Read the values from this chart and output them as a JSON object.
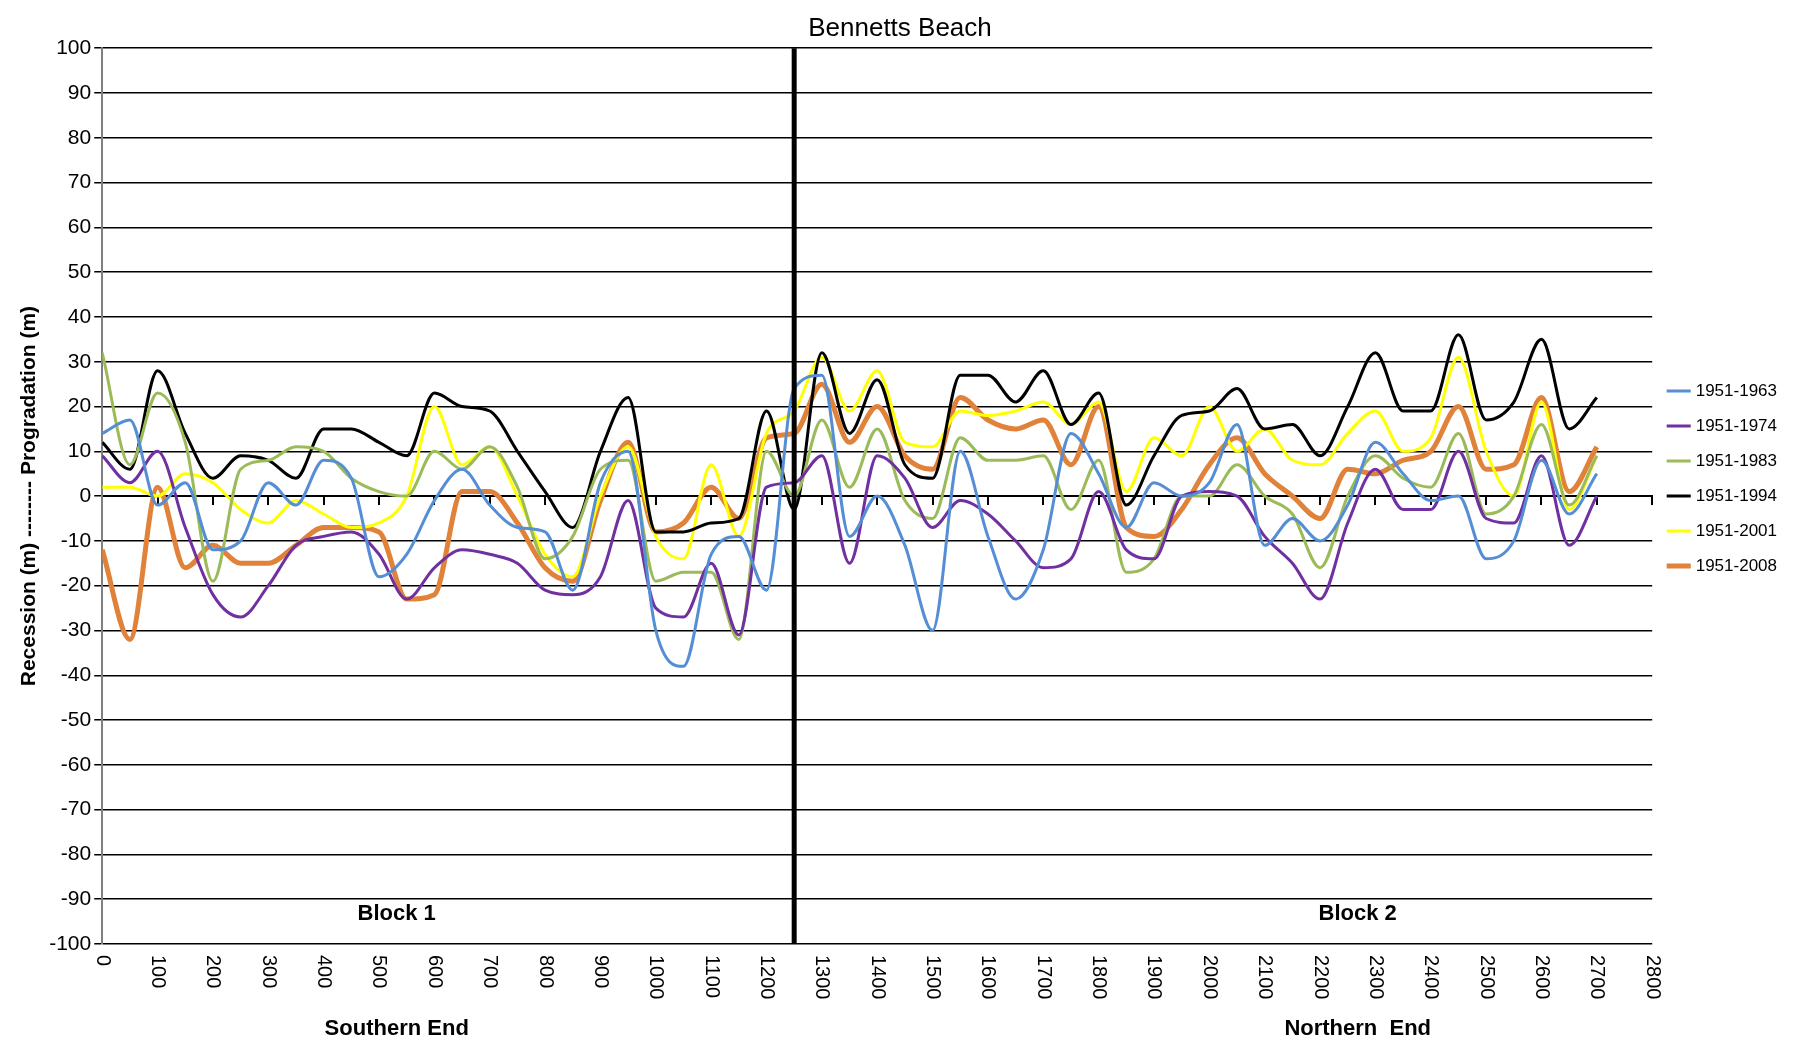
{
  "chart_data": {
    "type": "line",
    "title": "Bennetts Beach",
    "ylabel": "Recession (m) -------- Progradation (m)",
    "x": [
      0,
      50,
      100,
      150,
      200,
      250,
      300,
      350,
      400,
      450,
      500,
      550,
      600,
      650,
      700,
      750,
      800,
      850,
      900,
      950,
      1000,
      1050,
      1100,
      1150,
      1200,
      1250,
      1300,
      1350,
      1400,
      1450,
      1500,
      1550,
      1600,
      1650,
      1700,
      1750,
      1800,
      1850,
      1900,
      1950,
      2000,
      2050,
      2100,
      2150,
      2200,
      2250,
      2300,
      2350,
      2400,
      2450,
      2500,
      2550,
      2600,
      2650,
      2700
    ],
    "series": [
      {
        "name": "1951-1963",
        "color": "#558ed5",
        "values": [
          14,
          17,
          -2,
          3,
          -12,
          -10,
          3,
          -2,
          8,
          4,
          -18,
          -13,
          -1,
          6,
          -2,
          -7,
          -8,
          -21,
          3,
          10,
          -30,
          -38,
          -13,
          -9,
          -21,
          24,
          27,
          -9,
          0,
          -11,
          -30,
          10,
          -9,
          -23,
          -12,
          14,
          5,
          -7,
          3,
          0,
          3,
          16,
          -11,
          -5,
          -10,
          -2,
          12,
          5,
          -1,
          0,
          -14,
          -10,
          8,
          -4,
          5
        ]
      },
      {
        "name": "1951-1974",
        "color": "#7030a0",
        "values": [
          9,
          3,
          10,
          -7,
          -22,
          -27,
          -20,
          -11,
          -9,
          -8,
          -13,
          -23,
          -16,
          -12,
          -13,
          -15,
          -21,
          -22,
          -18,
          -1,
          -25,
          -27,
          -15,
          -31,
          2,
          3,
          9,
          -15,
          9,
          4,
          -7,
          -1,
          -4,
          -10,
          -16,
          -14,
          1,
          -12,
          -14,
          0,
          1,
          0,
          -9,
          -15,
          -23,
          -6,
          6,
          -3,
          -3,
          10,
          -5,
          -6,
          9,
          -11,
          0
        ]
      },
      {
        "name": "1951-1983",
        "color": "#9bbb59",
        "values": [
          32,
          7,
          23,
          12,
          -19,
          6,
          8,
          11,
          10,
          4,
          1,
          0,
          10,
          6,
          11,
          2,
          -14,
          -9,
          6,
          8,
          -19,
          -17,
          -17,
          -32,
          10,
          0,
          17,
          2,
          15,
          -1,
          -5,
          13,
          8,
          8,
          9,
          -3,
          8,
          -17,
          -14,
          0,
          0,
          7,
          0,
          -4,
          -16,
          0,
          9,
          4,
          2,
          14,
          -4,
          0,
          16,
          -2,
          9
        ]
      },
      {
        "name": "1951-1994",
        "color": "#000000",
        "values": [
          12,
          6,
          28,
          14,
          4,
          9,
          8,
          4,
          15,
          15,
          12,
          9,
          23,
          20,
          19,
          10,
          1,
          -7,
          10,
          22,
          -8,
          -8,
          -6,
          -5,
          19,
          -3,
          32,
          14,
          26,
          7,
          4,
          27,
          27,
          21,
          28,
          16,
          23,
          -2,
          9,
          18,
          19,
          24,
          15,
          16,
          9,
          20,
          32,
          19,
          19,
          36,
          17,
          21,
          35,
          15,
          22
        ]
      },
      {
        "name": "1951-2001",
        "color": "#ffff00",
        "values": [
          2,
          2,
          0,
          5,
          3,
          -3,
          -6,
          -1,
          -4,
          -7,
          -6,
          0,
          20,
          7,
          11,
          0,
          -13,
          -18,
          0,
          11,
          -9,
          -14,
          7,
          -9,
          14,
          19,
          31,
          19,
          28,
          12,
          11,
          19,
          18,
          19,
          21,
          16,
          21,
          1,
          13,
          9,
          20,
          10,
          15,
          8,
          7,
          14,
          19,
          10,
          13,
          31,
          10,
          0,
          21,
          -3,
          9
        ]
      },
      {
        "name": "1951-2008",
        "color": "#e0823a",
        "values": [
          -12,
          -32,
          2,
          -16,
          -11,
          -15,
          -15,
          -11,
          -7,
          -7,
          -8,
          -23,
          -22,
          1,
          1,
          -6,
          -16,
          -19,
          -1,
          12,
          -8,
          -6,
          2,
          -5,
          13,
          14,
          25,
          12,
          20,
          9,
          6,
          22,
          17,
          15,
          17,
          7,
          20,
          -7,
          -9,
          -3,
          7,
          13,
          5,
          0,
          -5,
          6,
          5,
          8,
          10,
          20,
          6,
          7,
          22,
          1,
          11
        ]
      }
    ],
    "xlim": [
      0,
      2800
    ],
    "xticks": [
      0,
      100,
      200,
      300,
      400,
      500,
      600,
      700,
      800,
      900,
      1000,
      1100,
      1200,
      1300,
      1400,
      1500,
      1600,
      1700,
      1800,
      1900,
      2000,
      2100,
      2200,
      2300,
      2400,
      2500,
      2600,
      2700,
      2800
    ],
    "ylim": [
      -100,
      100
    ],
    "yticks": [
      -100,
      -90,
      -80,
      -70,
      -60,
      -50,
      -40,
      -30,
      -20,
      -10,
      0,
      10,
      20,
      30,
      40,
      50,
      60,
      70,
      80,
      90,
      100
    ],
    "grid": "y",
    "legend": "right",
    "marker": "none",
    "line_style": "solid",
    "ref_lines": [
      {
        "axis": "x",
        "value": 1250,
        "color": "#000000"
      }
    ],
    "annotations": [
      "Block 1",
      "Block 2",
      "Southern End",
      "Northern  End"
    ]
  }
}
